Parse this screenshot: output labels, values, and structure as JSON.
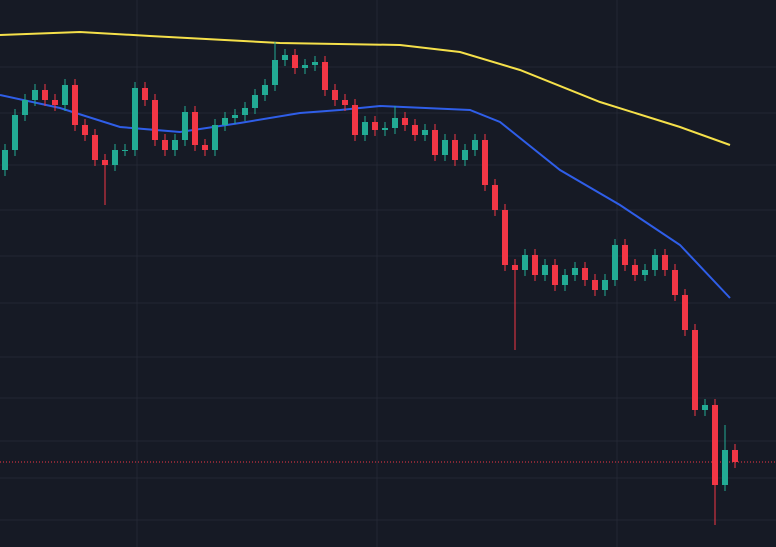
{
  "chart_data": {
    "type": "candlestick",
    "xlim": [
      0,
      776
    ],
    "ylim": [
      0,
      547
    ],
    "xticks": [
      137,
      377,
      617
    ],
    "yticks": [
      480,
      434,
      382,
      337,
      291,
      244,
      190,
      149,
      106,
      69,
      27
    ],
    "grid": true,
    "background": "#161a25",
    "grid_color": "#232733",
    "up_color": "#22ab94",
    "down_color": "#f23645",
    "x": [
      5,
      15,
      25,
      35,
      45,
      55,
      65,
      75,
      85,
      95,
      105,
      115,
      125,
      135,
      145,
      155,
      165,
      175,
      185,
      195,
      205,
      215,
      225,
      235,
      245,
      255,
      265,
      275,
      285,
      295,
      305,
      315,
      325,
      335,
      345,
      355,
      365,
      375,
      385,
      395,
      405,
      415,
      425,
      435,
      445,
      455,
      465,
      475,
      485,
      495,
      505,
      515,
      525,
      535,
      545,
      555,
      565,
      575,
      585,
      595,
      605,
      615,
      625,
      635,
      645,
      655,
      665,
      675,
      685,
      695,
      705,
      715,
      725,
      735
    ],
    "open": [
      377,
      397,
      432,
      447,
      457,
      447,
      442,
      462,
      422,
      412,
      387,
      382,
      397,
      397,
      459,
      447,
      407,
      397,
      407,
      435,
      402,
      397,
      422,
      429,
      432,
      439,
      452,
      462,
      487,
      492,
      479,
      482,
      485,
      457,
      447,
      442,
      412,
      425,
      417,
      419,
      429,
      422,
      412,
      417,
      392,
      407,
      387,
      397,
      407,
      362,
      337,
      282,
      277,
      292,
      272,
      282,
      262,
      272,
      279,
      267,
      257,
      267,
      302,
      282,
      272,
      277,
      292,
      277,
      252,
      217,
      137,
      142,
      62,
      97
    ],
    "high": [
      403,
      438,
      453,
      463,
      463,
      453,
      468,
      468,
      428,
      418,
      393,
      403,
      403,
      465,
      465,
      453,
      413,
      413,
      441,
      441,
      408,
      428,
      435,
      438,
      445,
      458,
      468,
      505,
      498,
      498,
      488,
      491,
      491,
      463,
      453,
      448,
      431,
      431,
      425,
      441,
      435,
      428,
      423,
      423,
      413,
      413,
      403,
      413,
      413,
      368,
      343,
      288,
      298,
      298,
      288,
      288,
      278,
      285,
      285,
      273,
      273,
      308,
      308,
      288,
      283,
      298,
      298,
      283,
      258,
      223,
      148,
      148,
      122,
      103
    ],
    "low": [
      371,
      391,
      426,
      441,
      441,
      436,
      436,
      416,
      406,
      381,
      342,
      376,
      391,
      391,
      441,
      401,
      391,
      391,
      401,
      396,
      391,
      391,
      416,
      423,
      426,
      433,
      446,
      456,
      481,
      473,
      473,
      476,
      451,
      441,
      436,
      406,
      406,
      411,
      411,
      413,
      416,
      406,
      406,
      386,
      386,
      381,
      381,
      391,
      356,
      331,
      276,
      197,
      271,
      266,
      266,
      256,
      256,
      266,
      261,
      251,
      251,
      261,
      276,
      266,
      266,
      271,
      271,
      246,
      211,
      131,
      131,
      22,
      56,
      79
    ],
    "close": [
      397,
      432,
      447,
      457,
      447,
      442,
      462,
      422,
      412,
      387,
      382,
      397,
      397,
      459,
      447,
      407,
      397,
      407,
      435,
      402,
      397,
      422,
      429,
      432,
      439,
      452,
      462,
      487,
      492,
      479,
      482,
      485,
      457,
      447,
      442,
      412,
      425,
      417,
      419,
      429,
      422,
      412,
      417,
      392,
      407,
      387,
      397,
      407,
      362,
      337,
      282,
      277,
      292,
      272,
      282,
      262,
      272,
      279,
      267,
      257,
      267,
      302,
      282,
      272,
      277,
      292,
      277,
      252,
      217,
      137,
      142,
      62,
      97,
      85
    ],
    "lines": [
      {
        "color": "#f5e04a",
        "x": [
          0,
          80,
          150,
          280,
          400,
          460,
          520,
          600,
          680,
          730
        ],
        "values": [
          512,
          515,
          511,
          504,
          502,
          495,
          477,
          445,
          420,
          402
        ]
      },
      {
        "color": "#2f5ee8",
        "x": [
          0,
          60,
          120,
          180,
          240,
          300,
          340,
          380,
          470,
          500,
          560,
          620,
          680,
          730
        ],
        "values": [
          452,
          439,
          420,
          415,
          424,
          434,
          437,
          441,
          437,
          425,
          377,
          342,
          302,
          249
        ]
      }
    ],
    "last_price": 85,
    "last_price_color": "#f23645"
  }
}
